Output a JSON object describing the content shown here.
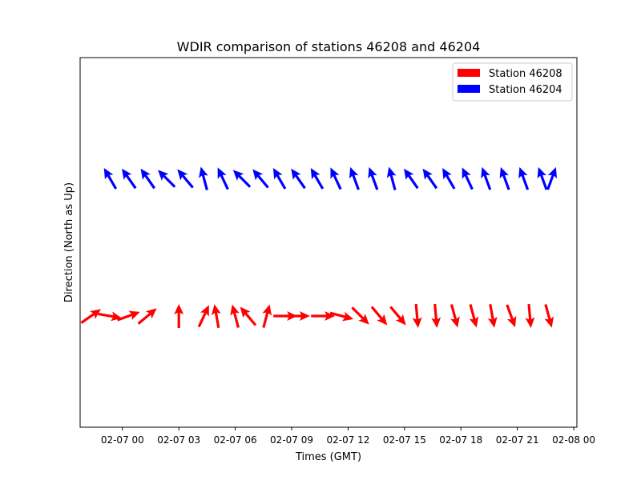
{
  "chart_data": {
    "type": "quiver",
    "title": "WDIR comparison of stations 46208 and 46204",
    "xlabel": "Times (GMT)",
    "ylabel": "Direction (North as Up)",
    "x_ticks": [
      "02-07 00",
      "02-07 03",
      "02-07 06",
      "02-07 09",
      "02-07 12",
      "02-07 15",
      "02-07 18",
      "02-07 21",
      "02-08 00"
    ],
    "xlim": [
      "02-06 21:45",
      "02-08 00:10"
    ],
    "legend": {
      "placement": "top-right"
    },
    "grid": false,
    "series": [
      {
        "name": "Station 46208",
        "color": "#ff0000",
        "times": [
          "02-06 22:20",
          "02-06 23:20",
          "02-07 00:20",
          "02-07 01:20",
          "02-07 03:00",
          "02-07 04:20",
          "02-07 05:00",
          "02-07 06:00",
          "02-07 06:40",
          "02-07 07:40",
          "02-07 08:40",
          "02-07 09:20",
          "02-07 10:40",
          "02-07 11:40",
          "02-07 12:40",
          "02-07 13:40",
          "02-07 14:40",
          "02-07 15:40",
          "02-07 16:40",
          "02-07 17:40",
          "02-07 18:40",
          "02-07 19:40",
          "02-07 20:40",
          "02-07 21:40",
          "02-07 22:40"
        ],
        "directions_deg": [
          55,
          100,
          70,
          50,
          0,
          25,
          350,
          345,
          320,
          15,
          90,
          90,
          90,
          105,
          135,
          140,
          140,
          175,
          175,
          165,
          165,
          170,
          160,
          175,
          165
        ]
      },
      {
        "name": "Station 46204",
        "color": "#0000ff",
        "times": [
          "02-06 23:20",
          "02-07 00:20",
          "02-07 01:20",
          "02-07 02:20",
          "02-07 03:20",
          "02-07 04:20",
          "02-07 05:20",
          "02-07 06:20",
          "02-07 07:20",
          "02-07 08:20",
          "02-07 09:20",
          "02-07 10:20",
          "02-07 11:20",
          "02-07 12:20",
          "02-07 13:20",
          "02-07 14:20",
          "02-07 15:20",
          "02-07 16:20",
          "02-07 17:20",
          "02-07 18:20",
          "02-07 19:20",
          "02-07 20:20",
          "02-07 21:20",
          "02-07 22:20",
          "02-07 22:50"
        ],
        "directions_deg": [
          330,
          325,
          325,
          315,
          320,
          345,
          335,
          315,
          320,
          330,
          325,
          330,
          335,
          340,
          340,
          345,
          325,
          325,
          330,
          335,
          340,
          340,
          340,
          340,
          20
        ]
      }
    ]
  }
}
